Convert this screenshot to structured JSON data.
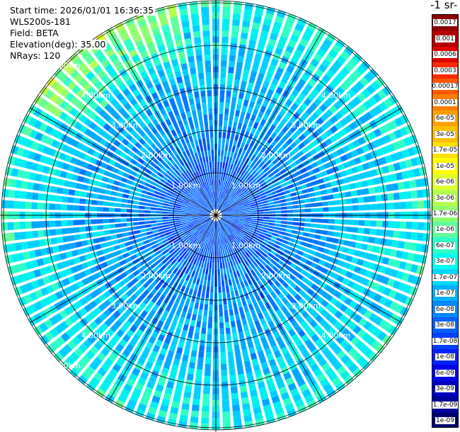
{
  "info": {
    "start_time": "Start time: 2026/01/01 16:36:35",
    "instrument": "WLS200s-181",
    "field": "Field: BETA",
    "elevation": "Elevation(deg): 35.00",
    "nrays": "NRays: 120"
  },
  "colorbar": {
    "title": "-1 sr-",
    "labels": [
      "0.0017",
      "0.001",
      "0.0006",
      "0.0003",
      "0.00017",
      "0.0001",
      "6e-05",
      "3e-05",
      "1.7e-05",
      "1e-05",
      "6e-06",
      "3e-06",
      "1.7e-06",
      "1e-06",
      "6e-07",
      "3e-07",
      "1.7e-07",
      "1e-07",
      "6e-08",
      "3e-08",
      "1.7e-08",
      "1e-08",
      "6e-09",
      "3e-09",
      "1.7e-09",
      "1e-09"
    ],
    "colors": [
      "#8b0000",
      "#b30000",
      "#dd0000",
      "#ff2a00",
      "#ff5500",
      "#ff7f00",
      "#ffa000",
      "#ffc000",
      "#ffe000",
      "#ffff00",
      "#e0ff30",
      "#b5ff50",
      "#90ff70",
      "#60ff9a",
      "#30ffc8",
      "#00fff0",
      "#00d8ff",
      "#00b0ff",
      "#0088ff",
      "#0060ff",
      "#0040ff",
      "#0020ff",
      "#0000e8",
      "#0000c0",
      "#00009a",
      "#000070"
    ]
  },
  "chart_data": {
    "type": "heatmap",
    "projection": "polar (PPI scan)",
    "field": "BETA",
    "elevation_deg": 35.0,
    "n_rays": 120,
    "range_ring_labels": [
      "1.00km",
      "2.00km",
      "3.00km",
      "4.00km",
      "5.00km"
    ],
    "value_range": [
      1e-09,
      0.0017
    ],
    "dominant_values": "blue (~1e-08 to 3e-08) near center, cyan-green (~1e-07 to 1e-06) toward outer edge, yellow-green (~3e-06) at upper-left edge",
    "grid": true
  }
}
